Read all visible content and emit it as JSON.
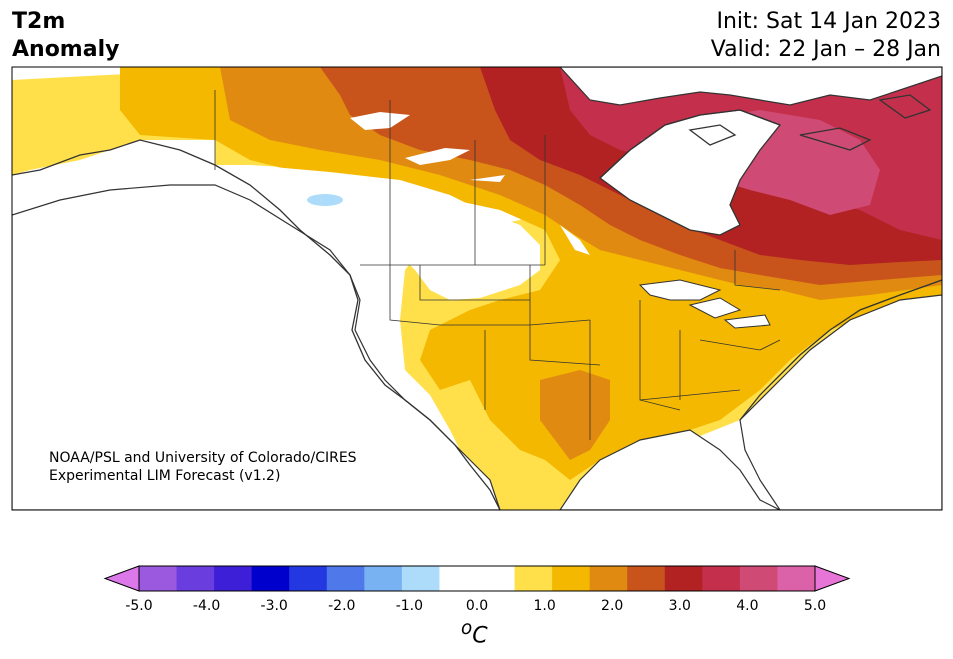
{
  "header": {
    "title_line1": "T2m",
    "title_line2": "Anomaly",
    "init_text": "Init: Sat 14 Jan 2023",
    "valid_text": "Valid: 22 Jan – 28 Jan"
  },
  "credit": {
    "line1": "NOAA/PSL and University of Colorado/CIRES",
    "line2": "Experimental LIM Forecast (v1.2)"
  },
  "colorbar": {
    "unit_symbol": "o",
    "unit_letter": "C",
    "tick_labels": [
      "-5.0",
      "-4.0",
      "-3.0",
      "-2.0",
      "-1.0",
      "0.0",
      "1.0",
      "2.0",
      "3.0",
      "4.0",
      "5.0"
    ],
    "bins": [
      "#dc78ea",
      "#9b59e0",
      "#6a3ddf",
      "#3c1fd6",
      "#0000cc",
      "#2338e0",
      "#4f78ea",
      "#78b2f2",
      "#acdcfa",
      "#ffffff",
      "#ffffff",
      "#ffe04a",
      "#f4b800",
      "#e08a12",
      "#c8541c",
      "#b22222",
      "#c4304c",
      "#cf4a74",
      "#db62a8",
      "#e775d8"
    ]
  },
  "colors": {
    "frame": "#000000",
    "coast": "#333333",
    "water": "#ffffff"
  }
}
